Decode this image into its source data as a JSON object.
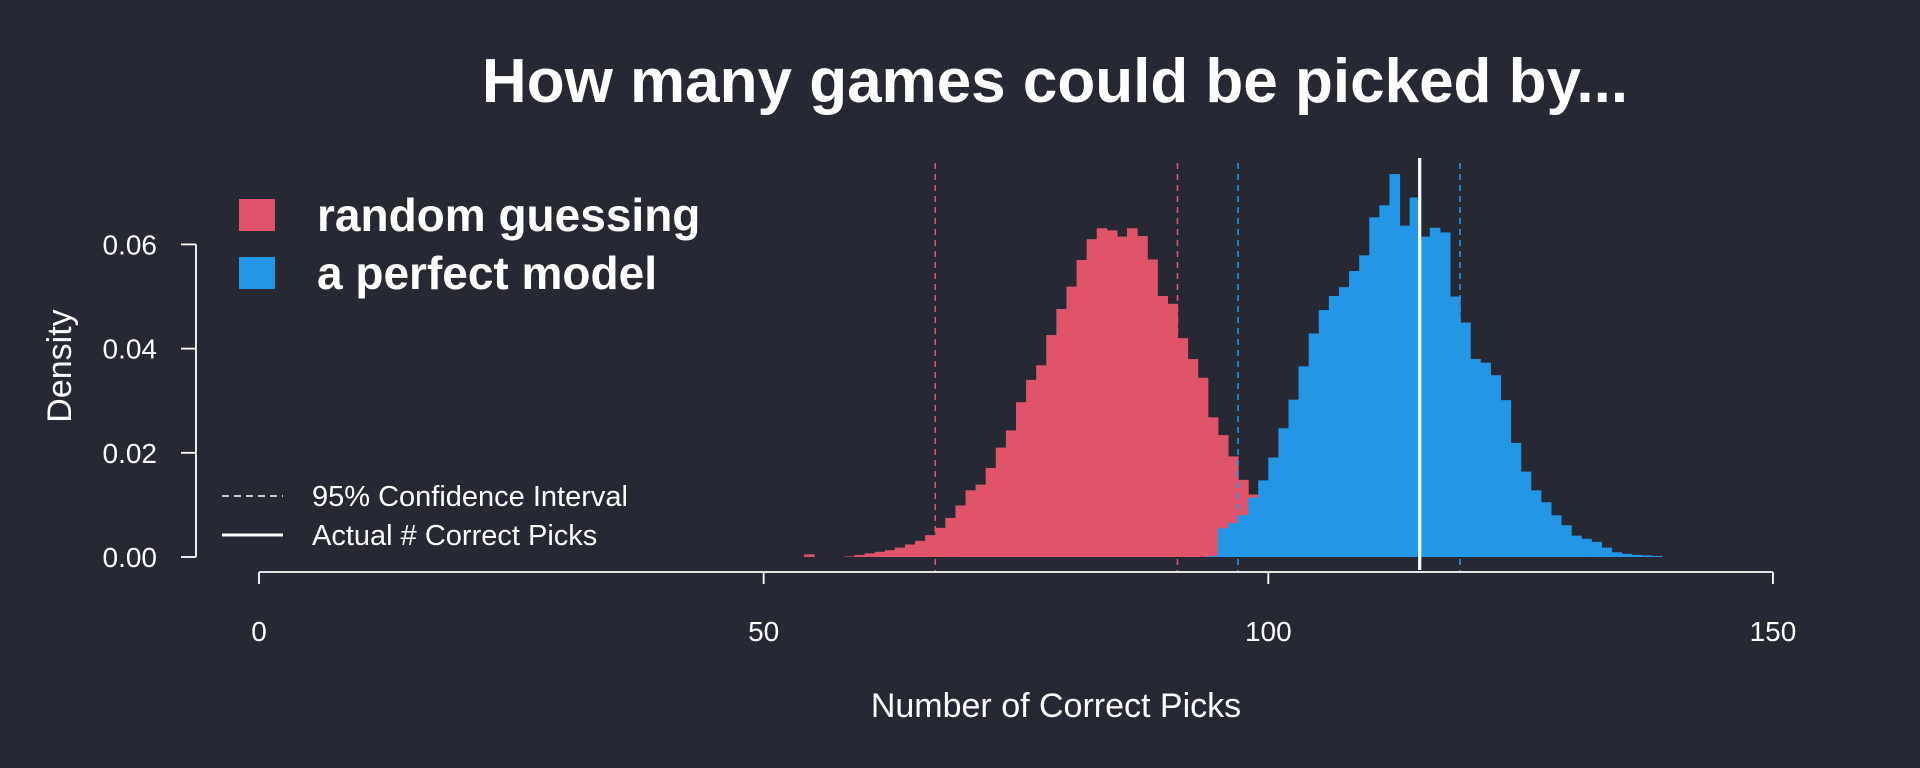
{
  "chart_data": {
    "type": "bar",
    "subtype": "histogram",
    "title": "How many games could be picked by...",
    "xlabel": "Number of Correct Picks",
    "ylabel": "Density",
    "xlim": [
      0,
      150
    ],
    "ylim": [
      0,
      0.075
    ],
    "xticks": [
      0,
      50,
      100,
      150
    ],
    "xtick_labels": [
      "0",
      "50",
      "100",
      "150"
    ],
    "yticks": [
      0.0,
      0.02,
      0.04,
      0.06
    ],
    "ytick_labels": [
      "0.00",
      "0.02",
      "0.04",
      "0.06"
    ],
    "bin_width": 1,
    "grid": false,
    "legend_placement": "top-left",
    "series": [
      {
        "name": "random guessing",
        "color": "#df5468",
        "bin_start": 54,
        "values": [
          0.0005,
          0,
          0,
          0,
          0.0001,
          0.0004,
          0.0007,
          0.001,
          0.0013,
          0.0018,
          0.0024,
          0.0031,
          0.0042,
          0.0056,
          0.0075,
          0.0099,
          0.0128,
          0.0139,
          0.0171,
          0.021,
          0.0243,
          0.0297,
          0.034,
          0.0368,
          0.0426,
          0.0476,
          0.0519,
          0.057,
          0.061,
          0.0631,
          0.0627,
          0.0615,
          0.0631,
          0.0616,
          0.0571,
          0.0501,
          0.0486,
          0.042,
          0.038,
          0.0344,
          0.0268,
          0.0234,
          0.0193,
          0.0148,
          0.012,
          0.01,
          0.0077,
          0.0058,
          0.004,
          0.003,
          0.0021,
          0.0016,
          0.0011,
          0.0007,
          0.0005,
          0.0003,
          0.0002,
          0.0001
        ]
      },
      {
        "name": "a perfect model",
        "color": "#2396e6",
        "bin_start": 94,
        "values": [
          0.0002,
          0.0055,
          0.0065,
          0.008,
          0.0114,
          0.0147,
          0.0191,
          0.0247,
          0.0302,
          0.0366,
          0.0429,
          0.0474,
          0.0501,
          0.0518,
          0.0549,
          0.0579,
          0.0652,
          0.0675,
          0.0735,
          0.0636,
          0.069,
          0.0615,
          0.0632,
          0.0623,
          0.05,
          0.045,
          0.038,
          0.0373,
          0.0349,
          0.0301,
          0.0219,
          0.0164,
          0.0128,
          0.0105,
          0.008,
          0.0061,
          0.0041,
          0.0035,
          0.0029,
          0.0018,
          0.0009,
          0.0006,
          0.0004,
          0.0003,
          0.0002
        ]
      }
    ],
    "reference_lines": [
      {
        "name": "95% Confidence Interval",
        "style": "dashed",
        "color": "#df5468",
        "x": [
          67,
          91
        ]
      },
      {
        "name": "95% Confidence Interval",
        "style": "dashed",
        "color": "#2396e6",
        "x": [
          97,
          119
        ]
      },
      {
        "name": "Actual # Correct Picks",
        "style": "solid",
        "color": "#ffffff",
        "x": [
          115
        ]
      }
    ],
    "legend_main": [
      {
        "label": "random guessing",
        "color": "#df5468"
      },
      {
        "label": "a perfect model",
        "color": "#2396e6"
      }
    ],
    "legend_lines": [
      {
        "label": "95% Confidence Interval",
        "style": "dashed"
      },
      {
        "label": "Actual # Correct Picks",
        "style": "solid"
      }
    ],
    "colors": {
      "background": "#262833",
      "foreground": "#ffffff"
    }
  }
}
